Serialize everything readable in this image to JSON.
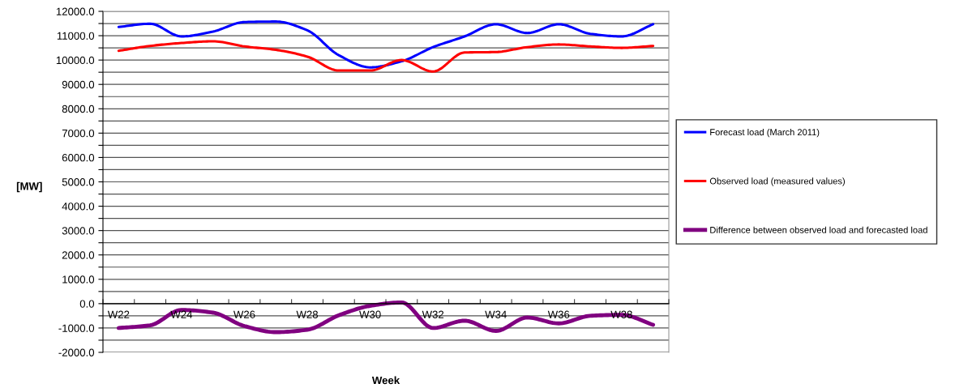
{
  "chart_data": {
    "type": "line",
    "xlabel": "Week",
    "ylabel": "[MW]",
    "categories": [
      "W22",
      null,
      "W24",
      null,
      "W26",
      null,
      "W28",
      null,
      "W30",
      null,
      "W32",
      null,
      "W34",
      null,
      "W36",
      null,
      "W38",
      null
    ],
    "series": [
      {
        "name": "Forecast load (March 2011)",
        "color": "#0000ff",
        "values": [
          11360,
          11490,
          10970,
          11170,
          11560,
          11580,
          11220,
          10200,
          9700,
          9950,
          10530,
          10970,
          11470,
          11110,
          11470,
          11080,
          10970,
          11470
        ]
      },
      {
        "name": "Observed load (measured values)",
        "color": "#ff0000",
        "values": [
          10380,
          10580,
          10700,
          10770,
          10560,
          10420,
          10140,
          9570,
          9570,
          10000,
          9530,
          10310,
          10330,
          10530,
          10640,
          10560,
          10500,
          10580
        ]
      },
      {
        "name": "Difference between observed load and forecasted load",
        "color": "#800080",
        "values": [
          -1000,
          -890,
          -260,
          -370,
          -920,
          -1170,
          -1070,
          -480,
          -90,
          50,
          -1000,
          -700,
          -1120,
          -570,
          -810,
          -500,
          -460,
          -870
        ]
      }
    ],
    "ylim": [
      -2000,
      12000
    ],
    "yticks": [
      {
        "value": -2000,
        "label": "-2000.0"
      },
      {
        "value": -1500,
        "label": null
      },
      {
        "value": -1000,
        "label": "-1000.0"
      },
      {
        "value": -500,
        "label": null
      },
      {
        "value": 0,
        "label": "0.0"
      },
      {
        "value": 500,
        "label": null
      },
      {
        "value": 1000,
        "label": "1000.0"
      },
      {
        "value": 1500,
        "label": null
      },
      {
        "value": 2000,
        "label": "2000.0"
      },
      {
        "value": 2500,
        "label": null
      },
      {
        "value": 3000,
        "label": "3000.0"
      },
      {
        "value": 3500,
        "label": null
      },
      {
        "value": 4000,
        "label": "4000.0"
      },
      {
        "value": 4500,
        "label": null
      },
      {
        "value": 5000,
        "label": "5000.0"
      },
      {
        "value": 5500,
        "label": null
      },
      {
        "value": 6000,
        "label": "6000.0"
      },
      {
        "value": 6500,
        "label": null
      },
      {
        "value": 7000,
        "label": "7000.0"
      },
      {
        "value": 7500,
        "label": null
      },
      {
        "value": 8000,
        "label": "8000.0"
      },
      {
        "value": 8500,
        "label": null
      },
      {
        "value": 9000,
        "label": "9000.0"
      },
      {
        "value": 9500,
        "label": null
      },
      {
        "value": 10000,
        "label": "10000.0"
      },
      {
        "value": 10500,
        "label": null
      },
      {
        "value": 11000,
        "label": "11000.0"
      },
      {
        "value": 11500,
        "label": null
      },
      {
        "value": 12000,
        "label": "12000.0"
      }
    ],
    "grid": "y",
    "legend": "right",
    "marker": "none",
    "line_style": "solid"
  }
}
